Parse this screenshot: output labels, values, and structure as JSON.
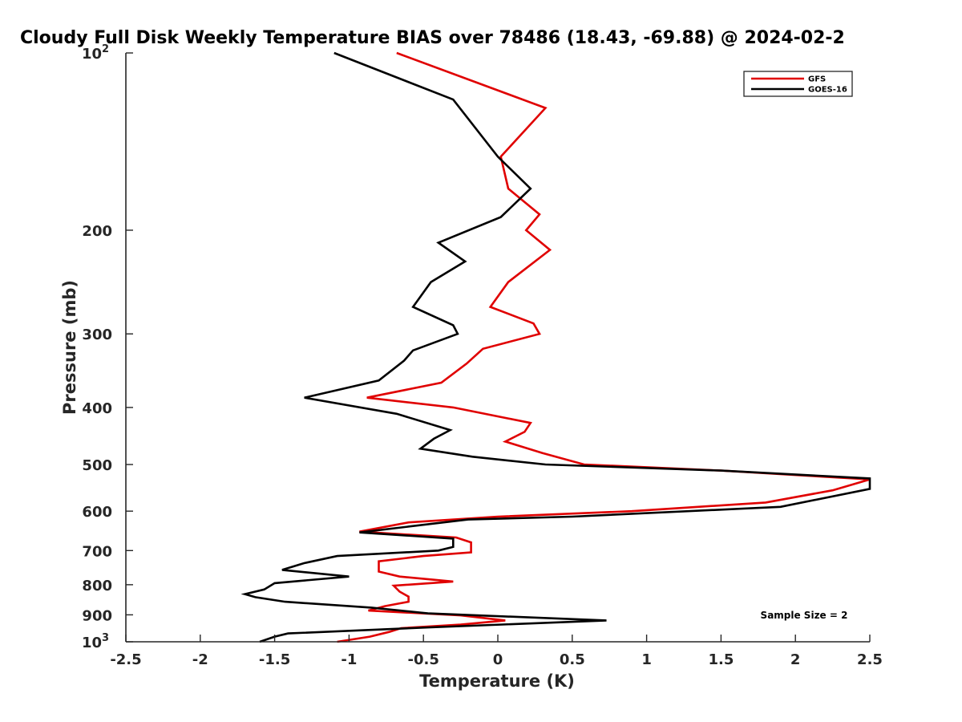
{
  "chart_data": {
    "type": "line",
    "title": "Cloudy Full Disk Weekly Temperature BIAS over 78486 (18.43, -69.88) @ 2024-02-2",
    "xlabel": "Temperature (K)",
    "ylabel": "Pressure (mb)",
    "xlim": [
      -2.5,
      2.5
    ],
    "ylim": [
      100,
      1000
    ],
    "y_scale": "log",
    "y_direction": "reversed",
    "grid": false,
    "legend_position": "top-right",
    "x_ticks": [
      -2.5,
      -2,
      -1.5,
      -1,
      -0.5,
      0,
      0.5,
      1,
      1.5,
      2,
      2.5
    ],
    "x_tick_labels": [
      "-2.5",
      "-2",
      "-1.5",
      "-1",
      "-0.5",
      "0",
      "0.5",
      "1",
      "1.5",
      "2",
      "2.5"
    ],
    "y_ticks": [
      {
        "value": 100,
        "label": "10",
        "sup": "2"
      },
      {
        "value": 200,
        "label": "200",
        "sup": ""
      },
      {
        "value": 300,
        "label": "300",
        "sup": ""
      },
      {
        "value": 400,
        "label": "400",
        "sup": ""
      },
      {
        "value": 500,
        "label": "500",
        "sup": ""
      },
      {
        "value": 600,
        "label": "600",
        "sup": ""
      },
      {
        "value": 700,
        "label": "700",
        "sup": ""
      },
      {
        "value": 800,
        "label": "800",
        "sup": ""
      },
      {
        "value": 900,
        "label": "900",
        "sup": ""
      },
      {
        "value": 1000,
        "label": "10",
        "sup": "3"
      }
    ],
    "annotation": "Sample Size = 2",
    "series": [
      {
        "name": "GFS",
        "color": "#e00000",
        "points": [
          [
            -0.68,
            100
          ],
          [
            0.32,
            124
          ],
          [
            0.02,
            150
          ],
          [
            0.07,
            170
          ],
          [
            0.28,
            188
          ],
          [
            0.19,
            200
          ],
          [
            0.35,
            216
          ],
          [
            0.07,
            245
          ],
          [
            -0.05,
            270
          ],
          [
            0.24,
            288
          ],
          [
            0.28,
            300
          ],
          [
            -0.1,
            318
          ],
          [
            -0.21,
            337
          ],
          [
            -0.38,
            363
          ],
          [
            -0.88,
            385
          ],
          [
            -0.3,
            400
          ],
          [
            0.22,
            425
          ],
          [
            0.18,
            440
          ],
          [
            0.05,
            457
          ],
          [
            0.3,
            478
          ],
          [
            0.58,
            500
          ],
          [
            1.5,
            512
          ],
          [
            2.5,
            530
          ],
          [
            2.25,
            553
          ],
          [
            1.8,
            580
          ],
          [
            0.9,
            600
          ],
          [
            0.0,
            613
          ],
          [
            -0.6,
            627
          ],
          [
            -0.93,
            650
          ],
          [
            -0.28,
            665
          ],
          [
            -0.18,
            678
          ],
          [
            -0.18,
            705
          ],
          [
            -0.5,
            715
          ],
          [
            -0.8,
            730
          ],
          [
            -0.8,
            760
          ],
          [
            -0.66,
            775
          ],
          [
            -0.3,
            790
          ],
          [
            -0.7,
            803
          ],
          [
            -0.66,
            822
          ],
          [
            -0.6,
            838
          ],
          [
            -0.6,
            855
          ],
          [
            -0.76,
            870
          ],
          [
            -0.87,
            885
          ],
          [
            -0.25,
            902
          ],
          [
            0.05,
            920
          ],
          [
            -0.25,
            935
          ],
          [
            -0.65,
            948
          ],
          [
            -0.73,
            962
          ],
          [
            -0.86,
            980
          ],
          [
            -1.08,
            1000
          ]
        ]
      },
      {
        "name": "GOES-16",
        "color": "#000000",
        "points": [
          [
            -1.1,
            100
          ],
          [
            -0.3,
            120
          ],
          [
            0.0,
            150
          ],
          [
            0.22,
            170
          ],
          [
            0.02,
            190
          ],
          [
            -0.4,
            210
          ],
          [
            -0.22,
            226
          ],
          [
            -0.45,
            245
          ],
          [
            -0.57,
            270
          ],
          [
            -0.3,
            290
          ],
          [
            -0.27,
            300
          ],
          [
            -0.57,
            320
          ],
          [
            -0.63,
            333
          ],
          [
            -0.8,
            360
          ],
          [
            -1.3,
            385
          ],
          [
            -0.68,
            410
          ],
          [
            -0.32,
            437
          ],
          [
            -0.43,
            452
          ],
          [
            -0.52,
            470
          ],
          [
            -0.17,
            485
          ],
          [
            0.32,
            500
          ],
          [
            1.5,
            512
          ],
          [
            2.5,
            528
          ],
          [
            2.5,
            550
          ],
          [
            1.9,
            590
          ],
          [
            0.5,
            613
          ],
          [
            -0.2,
            620
          ],
          [
            -0.93,
            652
          ],
          [
            -0.3,
            668
          ],
          [
            -0.3,
            690
          ],
          [
            -0.4,
            700
          ],
          [
            -1.08,
            715
          ],
          [
            -1.3,
            735
          ],
          [
            -1.45,
            755
          ],
          [
            -1.0,
            775
          ],
          [
            -1.5,
            795
          ],
          [
            -1.57,
            815
          ],
          [
            -1.7,
            830
          ],
          [
            -1.63,
            840
          ],
          [
            -1.43,
            855
          ],
          [
            -0.85,
            875
          ],
          [
            -0.47,
            895
          ],
          [
            0.73,
            920
          ],
          [
            -0.45,
            945
          ],
          [
            -1.41,
            968
          ],
          [
            -1.5,
            980
          ],
          [
            -1.6,
            1000
          ]
        ]
      }
    ]
  }
}
